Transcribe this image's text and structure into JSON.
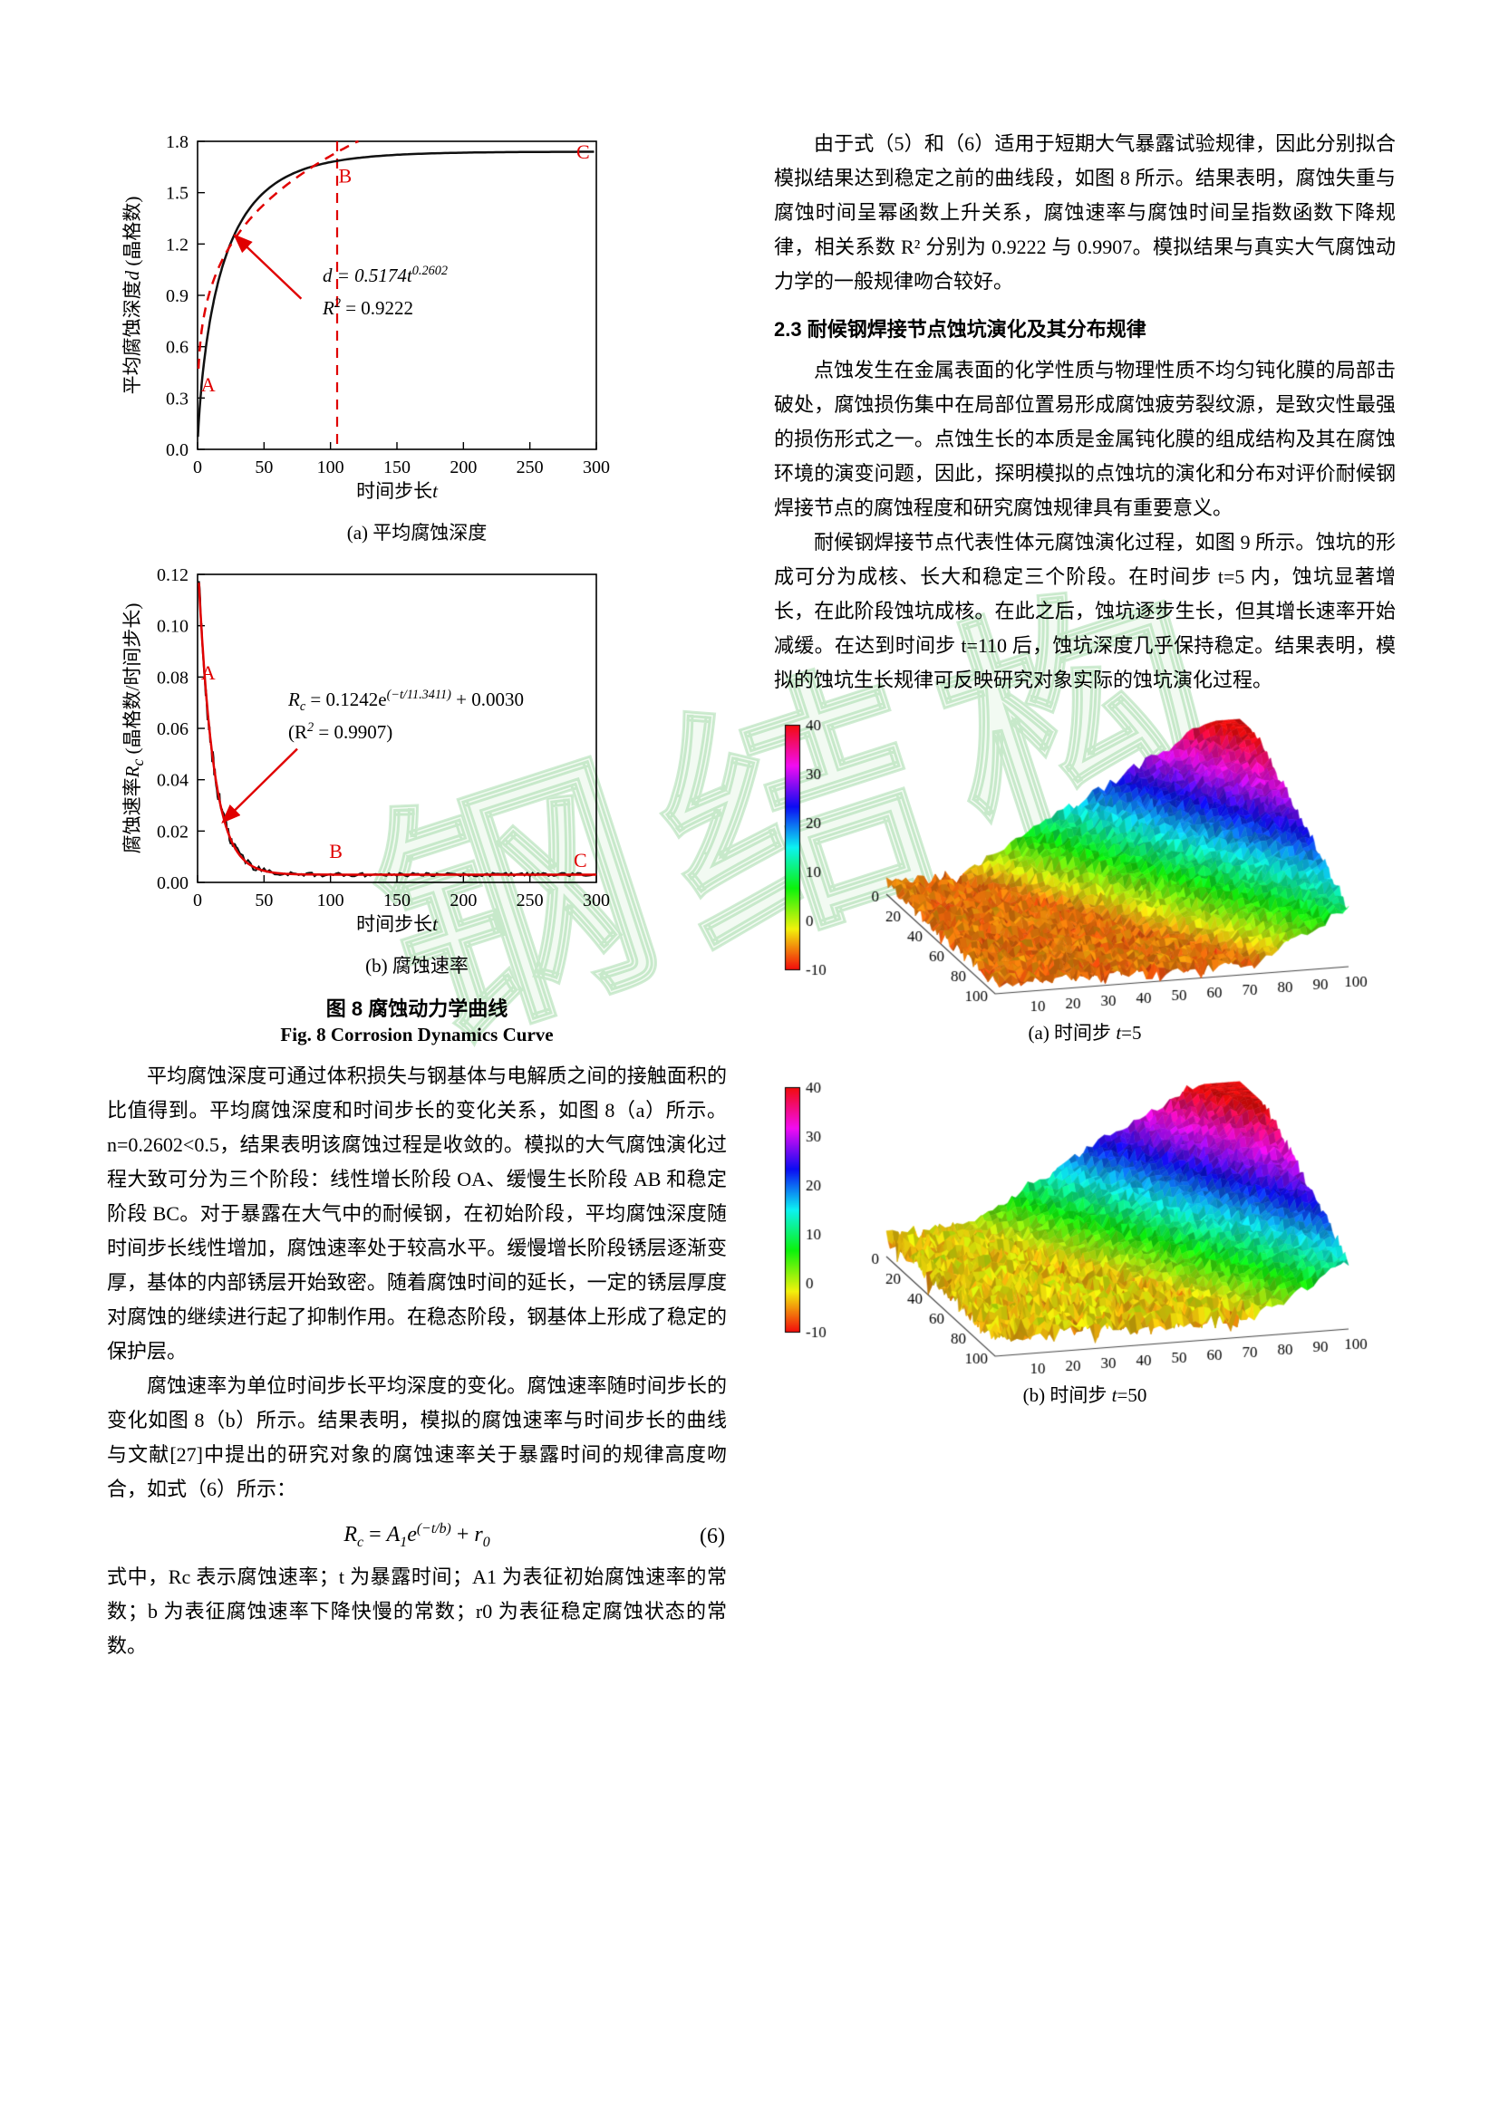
{
  "page": {
    "watermark": "钢结构"
  },
  "left_column": {
    "fig8": {
      "caption_a": "(a) 平均腐蚀深度",
      "caption_b": "(b) 腐蚀速率",
      "caption_zh": "图 8 腐蚀动力学曲线",
      "caption_en": "Fig. 8 Corrosion Dynamics Curve"
    },
    "paragraphs": {
      "p1": "平均腐蚀深度可通过体积损失与钢基体与电解质之间的接触面积的比值得到。平均腐蚀深度和时间步长的变化关系，如图 8（a）所示。n=0.2602<0.5，结果表明该腐蚀过程是收敛的。模拟的大气腐蚀演化过程大致可分为三个阶段：线性增长阶段 OA、缓慢生长阶段 AB 和稳定阶段 BC。对于暴露在大气中的耐候钢，在初始阶段，平均腐蚀深度随时间步长线性增加，腐蚀速率处于较高水平。缓慢增长阶段锈层逐渐变厚，基体的内部锈层开始致密。随着腐蚀时间的延长，一定的锈层厚度对腐蚀的继续进行起了抑制作用。在稳态阶段，钢基体上形成了稳定的保护层。",
      "p2": "腐蚀速率为单位时间步长平均深度的变化。腐蚀速率随时间步长的变化如图 8（b）所示。结果表明，模拟的腐蚀速率与时间步长的曲线与文献[27]中提出的研究对象的腐蚀速率关于暴露时间的规律高度吻合，如式（6）所示：",
      "p3": "式中，Rc 表示腐蚀速率；t 为暴露时间；A1 为表征初始腐蚀速率的常数；b 为表征腐蚀速率下降快慢的常数；r0 为表征稳定腐蚀状态的常数。"
    },
    "equation": {
      "v1": "R",
      "s1": "c",
      "op1": " = ",
      "v2": "A",
      "s2": "1",
      "v3": "e",
      "e1": "(−t/b)",
      "op2": " + ",
      "v4": "r",
      "s4": "0",
      "number": "(6)"
    }
  },
  "right_column": {
    "p1": "由于式（5）和（6）适用于短期大气暴露试验规律，因此分别拟合模拟结果达到稳定之前的曲线段，如图 8 所示。结果表明，腐蚀失重与腐蚀时间呈幂函数上升关系，腐蚀速率与腐蚀时间呈指数函数下降规律，相关系数 R² 分别为 0.9222 与 0.9907。模拟结果与真实大气腐蚀动力学的一般规律吻合较好。",
    "heading": "2.3 耐候钢焊接节点蚀坑演化及其分布规律",
    "p2": "点蚀发生在金属表面的化学性质与物理性质不均匀钝化膜的局部击破处，腐蚀损伤集中在局部位置易形成腐蚀疲劳裂纹源，是致灾性最强的损伤形式之一。点蚀生长的本质是金属钝化膜的组成结构及其在腐蚀环境的演变问题，因此，探明模拟的点蚀坑的演化和分布对评价耐候钢焊接节点的腐蚀程度和研究腐蚀规律具有重要意义。",
    "p3": "耐候钢焊接节点代表性体元腐蚀演化过程，如图 9 所示。蚀坑的形成可分为成核、长大和稳定三个阶段。在时间步 t=5 内，蚀坑显著增长，在此阶段蚀坑成核。在此之后，蚀坑逐步生长，但其增长速率开始减缓。在达到时间步 t=110 后，蚀坑深度几乎保持稳定。结果表明，模拟的蚀坑生长规律可反映研究对象实际的蚀坑演化过程。",
    "fig9": {
      "caption_a_pre": "(a) 时间步 ",
      "caption_var": "t",
      "caption_a_post": "=5",
      "caption_b_pre": "(b) 时间步 ",
      "caption_b_post": "=50"
    }
  },
  "chart_data": [
    {
      "id": "fig8a",
      "type": "line",
      "title": "(a) 平均腐蚀深度",
      "xlabel_pre": "时间步长",
      "xlabel_var": "t",
      "ylabel_pre": "平均腐蚀深度",
      "ylabel_var": "d",
      "ylabel_post": " (晶格数)",
      "xlim": [
        0,
        300
      ],
      "ylim": [
        0,
        1.8
      ],
      "xticks": [
        "0",
        "50",
        "100",
        "150",
        "200",
        "250",
        "300"
      ],
      "ytick_labels": [
        "0.0",
        "0.3",
        "0.6",
        "0.9",
        "1.2",
        "1.5",
        "1.8"
      ],
      "curves": [
        {
          "name": "simulated-depth",
          "kind": "saturation",
          "max": 1.74,
          "tau": 20,
          "p": 0.75,
          "t0": 0.3,
          "t1": 300,
          "color": "#111111",
          "width": 2.5
        },
        {
          "name": "power-fit",
          "kind": "power",
          "a": 0.5174,
          "n": 0.2602,
          "t0": 0.7,
          "t1": 130,
          "clip": 1.8,
          "color": "#e00000",
          "width": 2.5,
          "dash": "11 8"
        }
      ],
      "vline": {
        "x": 105,
        "color": "#e00000",
        "dash": "11 8"
      },
      "point_labels": [
        {
          "text": "A",
          "x": 8,
          "y": 0.34
        },
        {
          "text": "B",
          "x": 111,
          "y": 1.56
        },
        {
          "text": "C",
          "x": 290,
          "y": 1.7
        }
      ],
      "arrow": {
        "x1": 78,
        "y1": 0.88,
        "x2": 28,
        "y2": 1.25,
        "color": "#e00000"
      },
      "annotation": {
        "l1": "d = 0.5174t",
        "l1sup": "0.2602",
        "l2a": "R",
        "l2sup": "2",
        "l2b": " = 0.9222"
      },
      "fit_equation": "d = 0.5174·t^0.2602",
      "r_squared": 0.9222
    },
    {
      "id": "fig8b",
      "type": "line",
      "title": "(b) 腐蚀速率",
      "xlabel_pre": "时间步长",
      "xlabel_var": "t",
      "ylabel_pre": "腐蚀速率",
      "ylabel_var": "R",
      "ylabel_sub": "c",
      "ylabel_post": " (晶格数/时间步长)",
      "xlim": [
        0,
        300
      ],
      "ylim": [
        0,
        0.12
      ],
      "xticks": [
        "0",
        "50",
        "100",
        "150",
        "200",
        "250",
        "300"
      ],
      "ytick_labels": [
        "0.00",
        "0.02",
        "0.04",
        "0.06",
        "0.08",
        "0.10",
        "0.12"
      ],
      "curves": [
        {
          "name": "simulated-rate",
          "kind": "expdecay",
          "a": 0.1242,
          "b": 11.3411,
          "r0": 0.003,
          "noise": true,
          "t0": 1,
          "t1": 300,
          "color": "#111111",
          "width": 2
        },
        {
          "name": "exp-fit",
          "kind": "expdecay",
          "a": 0.1242,
          "b": 11.3411,
          "r0": 0.003,
          "noise": false,
          "t0": 1,
          "t1": 300,
          "color": "#e00000",
          "width": 2.5
        }
      ],
      "point_labels": [
        {
          "text": "A",
          "x": 8,
          "y": 0.079
        },
        {
          "text": "B",
          "x": 104,
          "y": 0.0095
        },
        {
          "text": "C",
          "x": 288,
          "y": 0.006
        }
      ],
      "arrow": {
        "x1": 75,
        "y1": 0.052,
        "x2": 19,
        "y2": 0.0235,
        "color": "#e00000"
      },
      "annotation": {
        "l1a": "R",
        "l1sub": "c",
        "l1b": " = 0.1242e",
        "l1sup": "(−t/11.3411)",
        "l1c": " + 0.0030",
        "l2a": "(R",
        "l2sup": "2",
        "l2b": " = 0.9907)"
      },
      "fit_equation": "Rc = 0.1242·e^(−t/11.3411) + 0.0030",
      "r_squared": 0.9907
    },
    {
      "id": "fig9a",
      "type": "surface3d",
      "caption": "(a) 时间步 t=5",
      "zrange": [
        -10,
        40
      ],
      "colorbar_ticks": [
        40,
        30,
        20,
        10,
        0,
        -10
      ],
      "xticks": [
        10,
        20,
        30,
        40,
        50,
        60,
        70,
        80,
        90,
        100
      ],
      "yticks": [
        0,
        20,
        40,
        60,
        80,
        100
      ],
      "surface": {
        "flat_base": -6,
        "flat_noise": 2.4,
        "pit_prob": 0.08,
        "seed": 7,
        "ramp_start": 75,
        "ramp_len": 80,
        "ramp_height": 52,
        "y_skew": 0.55,
        "zcap": 41
      }
    },
    {
      "id": "fig9b",
      "type": "surface3d",
      "caption": "(b) 时间步 t=50",
      "zrange": [
        -10,
        40
      ],
      "colorbar_ticks": [
        40,
        30,
        20,
        10,
        0,
        -10
      ],
      "xticks": [
        10,
        20,
        30,
        40,
        50,
        60,
        70,
        80,
        90,
        100
      ],
      "yticks": [
        0,
        20,
        40,
        60,
        80,
        100
      ],
      "surface": {
        "flat_base": -2.6,
        "flat_noise": 3.6,
        "pit_prob": 0.16,
        "seed": 131,
        "ramp_start": 75,
        "ramp_len": 80,
        "ramp_height": 52,
        "y_skew": 0.55,
        "zcap": 41
      }
    }
  ]
}
